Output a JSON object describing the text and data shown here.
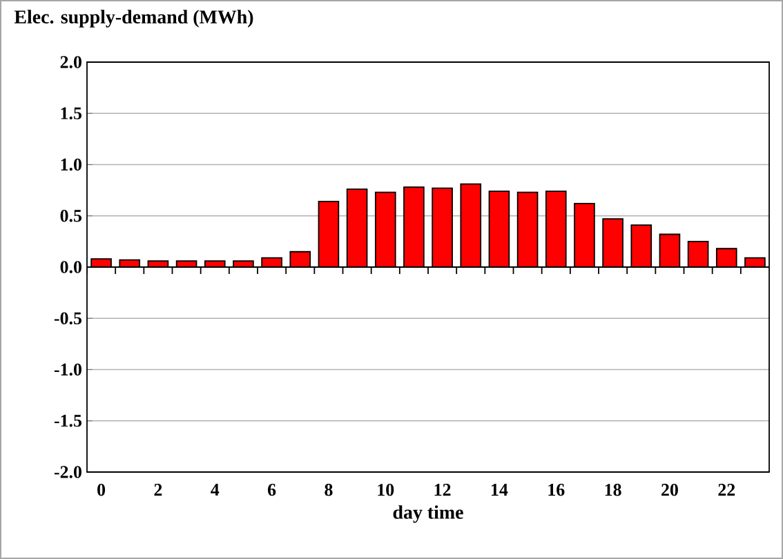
{
  "chart_data": {
    "type": "bar",
    "ylabel": "Elec. supply-demand (MWh)",
    "xlabel": "day time",
    "categories": [
      "0",
      null,
      "2",
      null,
      "4",
      null,
      "6",
      null,
      "8",
      null,
      "10",
      null,
      "12",
      null,
      "14",
      null,
      "16",
      null,
      "18",
      null,
      "20",
      null,
      "22",
      null
    ],
    "values": [
      0.08,
      0.07,
      0.06,
      0.06,
      0.06,
      0.06,
      0.09,
      0.15,
      0.64,
      0.76,
      0.73,
      0.78,
      0.77,
      0.81,
      0.74,
      0.73,
      0.74,
      0.62,
      0.47,
      0.41,
      0.32,
      0.25,
      0.18,
      0.09
    ],
    "color": "#ff0000",
    "ylim": [
      -2.0,
      2.0
    ],
    "yticks": [
      {
        "value": -2.0,
        "label": "-2.0"
      },
      {
        "value": -1.5,
        "label": "-1.5"
      },
      {
        "value": -1.0,
        "label": "-1.0"
      },
      {
        "value": -0.5,
        "label": "-0.5"
      },
      {
        "value": 0.0,
        "label": "0.0"
      },
      {
        "value": 0.5,
        "label": "0.5"
      },
      {
        "value": 1.0,
        "label": "1.0"
      },
      {
        "value": 1.5,
        "label": "1.5"
      },
      {
        "value": 2.0,
        "label": "2.0"
      }
    ],
    "grid": "y"
  }
}
